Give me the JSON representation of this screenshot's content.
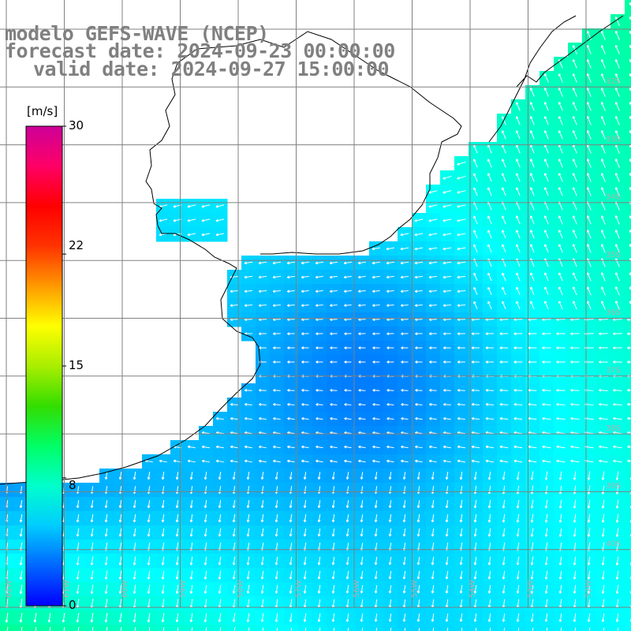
{
  "title": {
    "line1": "modelo GEFS-WAVE (NCEP)",
    "line2": "forecast date: 2024-09-23 00:00:00",
    "line3": "valid date: 2024-09-27 15:00:00"
  },
  "colorbar": {
    "units": "[m/s]",
    "ticks": [
      {
        "value": 30,
        "label": "30"
      },
      {
        "value": 22,
        "label": "22"
      },
      {
        "value": 15,
        "label": "15"
      },
      {
        "value": 8,
        "label": "8"
      },
      {
        "value": 0,
        "label": "0"
      }
    ],
    "range": [
      0,
      30
    ],
    "colors": [
      "#0000ff",
      "#0066ff",
      "#00ccff",
      "#00ffcc",
      "#00ff66",
      "#33dd00",
      "#aaee00",
      "#ffff00",
      "#ff9900",
      "#ff3300",
      "#ff0000",
      "#ff0066",
      "#cc0099"
    ]
  },
  "map": {
    "variable": "wind speed and direction",
    "region": "Rio de la Plata / South Brazil coast",
    "land_color": "#ffffff",
    "coast_color": "#000000",
    "grid_color": "#808080",
    "arrow_color": "#ffffff",
    "lat_labels": [
      "32S",
      "33S",
      "34S",
      "35S",
      "36S",
      "37S",
      "38S",
      "39S",
      "40S"
    ],
    "lon_labels": [
      "62W",
      "61W",
      "60W",
      "59W",
      "58W",
      "57W",
      "56W",
      "55W",
      "54W",
      "53W",
      "52W"
    ]
  }
}
